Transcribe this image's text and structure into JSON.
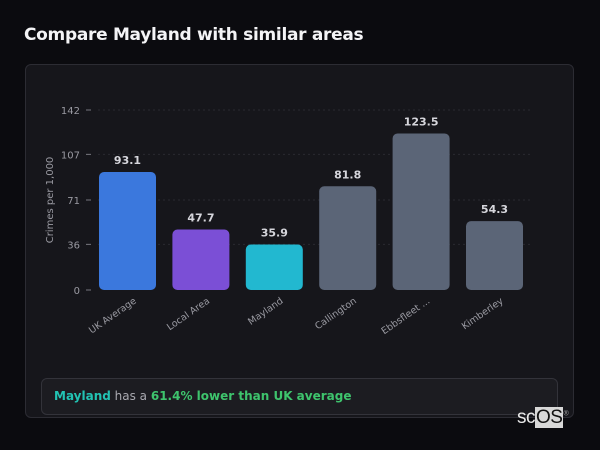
{
  "title": "Compare Mayland with similar areas",
  "chart_data": {
    "type": "bar",
    "title": "",
    "xlabel": "",
    "ylabel": "Crimes per 1,000",
    "ylim": [
      0,
      142
    ],
    "yticks": [
      0,
      36,
      71,
      107,
      142
    ],
    "grid": true,
    "categories": [
      "UK Average",
      "Local Area",
      "Mayland",
      "Callington",
      "Ebbsfleet ...",
      "Kimberley"
    ],
    "values": [
      93.1,
      47.7,
      35.9,
      81.8,
      123.5,
      54.3
    ],
    "data_labels": [
      "93.1",
      "47.7",
      "35.9",
      "81.8",
      "123.5",
      "54.3"
    ],
    "colors": [
      "#3b78dd",
      "#7b4fd6",
      "#22b8d0",
      "#5b6577",
      "#5b6577",
      "#5b6577"
    ]
  },
  "summary": {
    "area": "Mayland",
    "middle": " has a ",
    "comparison": "61.4% lower than UK average"
  },
  "logo": {
    "text_a": "sc",
    "text_b": "OS",
    "mark": "®"
  }
}
